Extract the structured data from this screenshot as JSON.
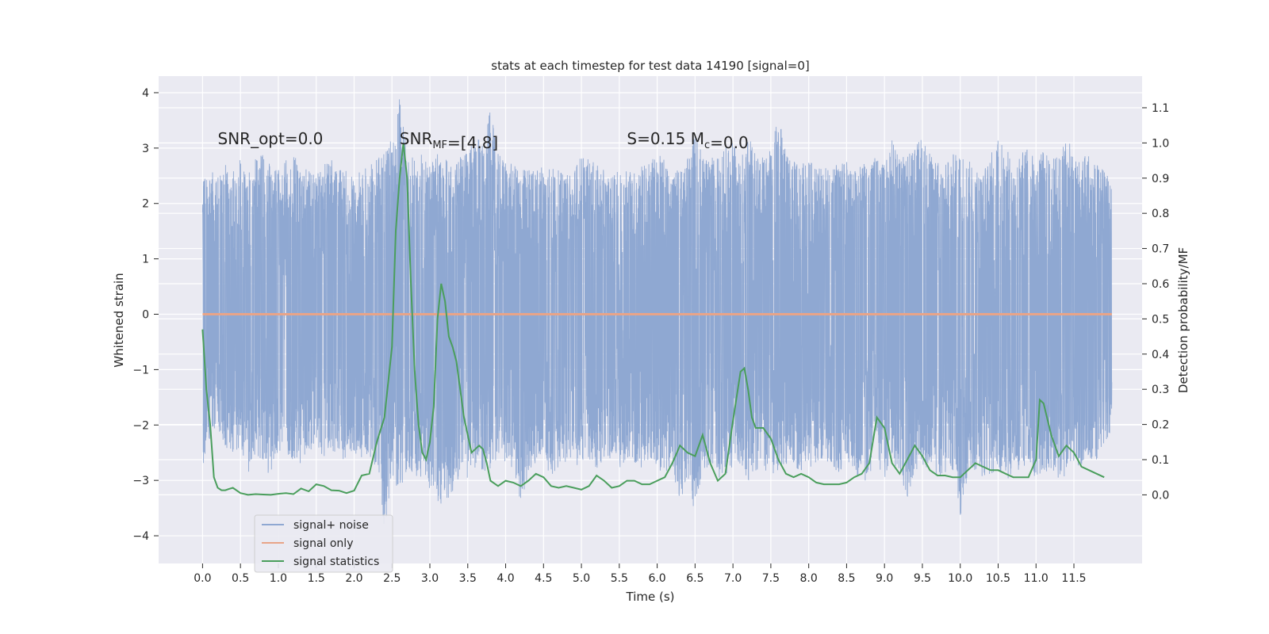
{
  "chart_data": {
    "type": "line",
    "title": "stats at each timestep for test data 14190 [signal=0]",
    "xlabel": "Time (s)",
    "ylabel": "Whitened strain",
    "y2label": "Detection probability/MF",
    "xlim": [
      -0.58,
      12.4
    ],
    "ylim": [
      -4.5,
      4.3
    ],
    "y2lim": [
      -0.195,
      1.19
    ],
    "xticks": [
      "0.0",
      "0.5",
      "1.0",
      "1.5",
      "2.0",
      "2.5",
      "3.0",
      "3.5",
      "4.0",
      "4.5",
      "5.0",
      "5.5",
      "6.0",
      "6.5",
      "7.0",
      "7.5",
      "8.0",
      "8.5",
      "9.0",
      "9.5",
      "10.0",
      "10.5",
      "11.0",
      "11.5"
    ],
    "yticks": [
      "4",
      "3",
      "2",
      "1",
      "0",
      "−1",
      "−2",
      "−3",
      "−4"
    ],
    "y2ticks": [
      "1.1",
      "1.0",
      "0.9",
      "0.8",
      "0.7",
      "0.6",
      "0.5",
      "0.4",
      "0.3",
      "0.2",
      "0.1",
      "0.0"
    ],
    "grid": true,
    "legend_position": "lower-left",
    "annotations": [
      {
        "text": "SNR_opt=0.0",
        "x": 0.2,
        "y": 3.1
      },
      {
        "text": "SNR_MF=[4.8]",
        "x": 2.6,
        "y": 3.1
      },
      {
        "text": "S=0.15   M_c=0.0",
        "x": 5.6,
        "y": 3.1
      }
    ],
    "series": [
      {
        "name": "signal+ noise",
        "color": "#8fa8d2",
        "axis": "left",
        "t_range": [
          0.0,
          12.0
        ],
        "envelope_upper": [
          2.4,
          2.6,
          2.5,
          2.7,
          2.6,
          2.8,
          2.5,
          2.9,
          3.1,
          2.7,
          2.6,
          2.8,
          2.9,
          2.7,
          2.6,
          2.5,
          2.7,
          2.8,
          2.6,
          2.6,
          2.5,
          2.6,
          2.7,
          2.8,
          2.9,
          3.2,
          3.9,
          3.0,
          2.8,
          2.9,
          2.8,
          2.9,
          3.0,
          2.6,
          2.9,
          3.0,
          3.2,
          3.1,
          3.7,
          2.9,
          2.8,
          2.7,
          2.6,
          2.7,
          2.6,
          2.8,
          2.7,
          2.6,
          2.5,
          2.7,
          2.9,
          2.8,
          2.7,
          2.6,
          2.5,
          2.6,
          2.7,
          2.6,
          2.7,
          2.8,
          2.9,
          2.8,
          2.6,
          2.7,
          2.8,
          3.3,
          2.9,
          2.8,
          2.9,
          3.0,
          3.1,
          2.8,
          3.2,
          3.0,
          2.9,
          3.0,
          3.6,
          2.9,
          2.8,
          2.7,
          2.8,
          2.7,
          2.6,
          2.8,
          2.7,
          2.8,
          2.6,
          2.7,
          2.8,
          2.9,
          2.7,
          3.3,
          2.8,
          2.9,
          3.0,
          3.3,
          2.9,
          2.8,
          2.7,
          2.9,
          3.0,
          2.8,
          2.7,
          2.6,
          2.9,
          3.2,
          3.0,
          2.8,
          2.9,
          3.1,
          2.7,
          3.0,
          2.8,
          2.9,
          3.3,
          2.8,
          2.9,
          3.0,
          2.7,
          2.6,
          2.4
        ],
        "envelope_lower": [
          -2.9,
          -2.3,
          -2.1,
          -2.4,
          -2.6,
          -2.4,
          -2.9,
          -2.5,
          -2.7,
          -3.0,
          -2.5,
          -2.8,
          -2.6,
          -2.7,
          -2.5,
          -2.4,
          -2.6,
          -2.5,
          -2.6,
          -2.7,
          -2.5,
          -2.6,
          -2.7,
          -2.8,
          -4.0,
          -3.0,
          -3.2,
          -2.8,
          -2.9,
          -3.0,
          -3.2,
          -3.4,
          -3.5,
          -3.2,
          -2.9,
          -3.0,
          -2.8,
          -2.9,
          -2.8,
          -2.7,
          -2.7,
          -2.8,
          -3.4,
          -2.9,
          -2.8,
          -2.7,
          -2.9,
          -2.8,
          -2.7,
          -2.8,
          -2.7,
          -2.6,
          -2.8,
          -2.7,
          -2.6,
          -2.8,
          -2.6,
          -2.7,
          -2.8,
          -2.7,
          -2.8,
          -2.9,
          -2.9,
          -3.4,
          -3.0,
          -3.7,
          -2.8,
          -2.9,
          -3.0,
          -2.9,
          -2.8,
          -2.7,
          -3.0,
          -2.9,
          -2.8,
          -3.0,
          -2.9,
          -2.8,
          -2.7,
          -2.9,
          -2.8,
          -2.7,
          -2.6,
          -2.8,
          -2.9,
          -2.7,
          -2.8,
          -3.1,
          -2.9,
          -2.7,
          -3.0,
          -2.8,
          -2.9,
          -3.4,
          -2.8,
          -2.9,
          -2.7,
          -3.0,
          -2.9,
          -2.8,
          -3.7,
          -2.9,
          -2.8,
          -3.0,
          -2.9,
          -2.8,
          -3.0,
          -2.9,
          -2.8,
          -2.7,
          -3.0,
          -2.9,
          -2.8,
          -3.0,
          -2.9,
          -2.7,
          -2.8,
          -2.6,
          -2.7,
          -2.4,
          -2.2
        ]
      },
      {
        "name": "signal only",
        "color": "#e8a488",
        "axis": "left",
        "x": [
          0.0,
          12.0
        ],
        "y": [
          0.0,
          0.0
        ]
      },
      {
        "name": "signal statistics",
        "color": "#4a9e5c",
        "axis": "right",
        "x": [
          0.0,
          0.05,
          0.1,
          0.15,
          0.2,
          0.25,
          0.3,
          0.35,
          0.4,
          0.5,
          0.6,
          0.7,
          0.8,
          0.9,
          1.0,
          1.1,
          1.2,
          1.3,
          1.4,
          1.5,
          1.6,
          1.7,
          1.8,
          1.9,
          2.0,
          2.1,
          2.2,
          2.3,
          2.4,
          2.5,
          2.55,
          2.6,
          2.65,
          2.7,
          2.75,
          2.8,
          2.85,
          2.9,
          2.95,
          3.0,
          3.05,
          3.1,
          3.15,
          3.2,
          3.25,
          3.3,
          3.35,
          3.4,
          3.45,
          3.5,
          3.55,
          3.6,
          3.65,
          3.7,
          3.75,
          3.8,
          3.9,
          4.0,
          4.1,
          4.2,
          4.3,
          4.4,
          4.5,
          4.6,
          4.7,
          4.8,
          4.9,
          5.0,
          5.1,
          5.2,
          5.3,
          5.4,
          5.5,
          5.6,
          5.7,
          5.8,
          5.9,
          6.0,
          6.1,
          6.2,
          6.3,
          6.4,
          6.5,
          6.6,
          6.7,
          6.8,
          6.9,
          7.0,
          7.1,
          7.15,
          7.2,
          7.25,
          7.3,
          7.4,
          7.5,
          7.6,
          7.7,
          7.8,
          7.9,
          8.0,
          8.1,
          8.2,
          8.3,
          8.4,
          8.5,
          8.6,
          8.7,
          8.8,
          8.9,
          9.0,
          9.1,
          9.2,
          9.3,
          9.4,
          9.5,
          9.6,
          9.7,
          9.8,
          9.9,
          10.0,
          10.1,
          10.2,
          10.3,
          10.4,
          10.5,
          10.6,
          10.7,
          10.8,
          10.9,
          11.0,
          11.05,
          11.1,
          11.2,
          11.3,
          11.4,
          11.5,
          11.6,
          11.7,
          11.8,
          11.9
        ],
        "y": [
          0.47,
          0.3,
          0.2,
          0.05,
          0.02,
          0.013,
          0.013,
          0.017,
          0.02,
          0.005,
          0.0,
          0.002,
          0.001,
          0.0,
          0.003,
          0.005,
          0.002,
          0.018,
          0.01,
          0.03,
          0.025,
          0.013,
          0.012,
          0.005,
          0.012,
          0.055,
          0.06,
          0.15,
          0.22,
          0.42,
          0.75,
          0.9,
          1.0,
          0.9,
          0.6,
          0.35,
          0.2,
          0.12,
          0.1,
          0.15,
          0.25,
          0.5,
          0.6,
          0.55,
          0.45,
          0.42,
          0.38,
          0.3,
          0.22,
          0.17,
          0.12,
          0.13,
          0.14,
          0.13,
          0.09,
          0.04,
          0.025,
          0.04,
          0.035,
          0.025,
          0.04,
          0.06,
          0.05,
          0.025,
          0.02,
          0.025,
          0.02,
          0.015,
          0.025,
          0.055,
          0.04,
          0.02,
          0.025,
          0.04,
          0.04,
          0.03,
          0.03,
          0.04,
          0.05,
          0.09,
          0.14,
          0.12,
          0.11,
          0.17,
          0.09,
          0.04,
          0.06,
          0.21,
          0.35,
          0.36,
          0.3,
          0.22,
          0.19,
          0.19,
          0.16,
          0.1,
          0.06,
          0.05,
          0.06,
          0.05,
          0.035,
          0.03,
          0.03,
          0.03,
          0.035,
          0.05,
          0.06,
          0.09,
          0.22,
          0.19,
          0.09,
          0.06,
          0.1,
          0.14,
          0.11,
          0.07,
          0.055,
          0.055,
          0.05,
          0.05,
          0.07,
          0.09,
          0.08,
          0.07,
          0.07,
          0.06,
          0.05,
          0.05,
          0.05,
          0.1,
          0.27,
          0.26,
          0.17,
          0.11,
          0.14,
          0.12,
          0.08,
          0.07,
          0.06,
          0.05
        ]
      }
    ]
  }
}
